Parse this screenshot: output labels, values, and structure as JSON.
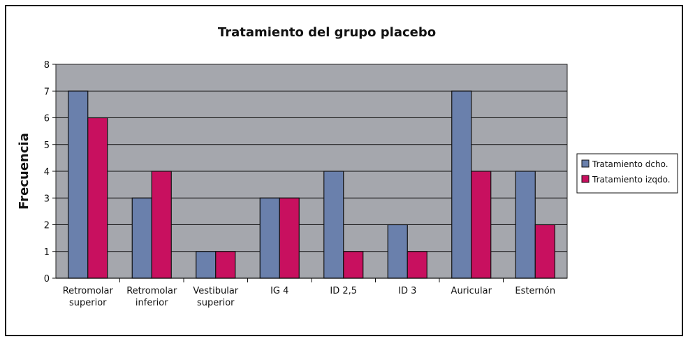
{
  "chart_data": {
    "type": "bar",
    "title": "Tratamiento del grupo placebo",
    "xlabel": "",
    "ylabel": "Frecuencia",
    "ylim": [
      0,
      8
    ],
    "yticks": [
      "0",
      "1",
      "2",
      "3",
      "4",
      "5",
      "6",
      "7",
      "8"
    ],
    "grid": true,
    "legend_position": "right",
    "categories": [
      [
        "Retromolar",
        "superior"
      ],
      [
        "Retromolar",
        "inferior"
      ],
      [
        "Vestibular",
        "superior"
      ],
      [
        "IG 4"
      ],
      [
        "ID 2,5"
      ],
      [
        "ID 3"
      ],
      [
        "Auricular"
      ],
      [
        "Esternón"
      ]
    ],
    "series": [
      {
        "name": "Tratamiento dcho.",
        "color": "#6a80ac",
        "values": [
          7,
          3,
          1,
          3,
          4,
          2,
          7,
          4
        ]
      },
      {
        "name": "Tratamiento izqdo.",
        "color": "#c8105f",
        "values": [
          6,
          4,
          1,
          3,
          1,
          1,
          4,
          2
        ]
      }
    ],
    "plot_background": "#a5a7ad"
  }
}
